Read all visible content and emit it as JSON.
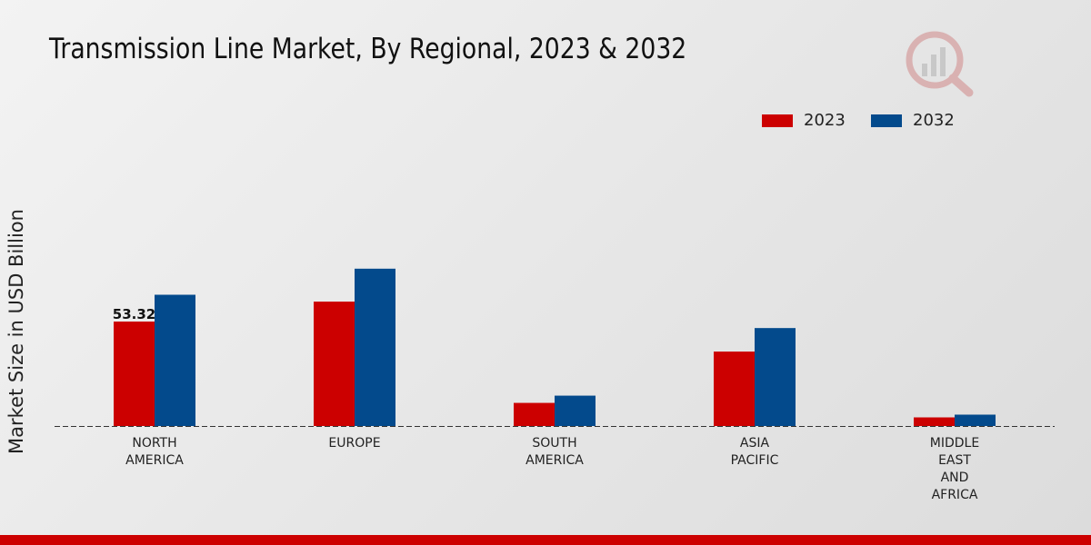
{
  "colors": {
    "series_2023": "#cc0000",
    "series_2032": "#034a8c",
    "footer": "#cc0000"
  },
  "logo": {
    "icon": "magnifier-bar-chart-logo-icon"
  },
  "chart_data": {
    "type": "bar",
    "title": "Transmission Line Market, By Regional, 2023 & 2032",
    "xlabel": "",
    "ylabel": "Market Size in USD Billion",
    "ylim": [
      0,
      120
    ],
    "legend_position": "top-right",
    "grid": false,
    "categories": [
      [
        "NORTH",
        "AMERICA"
      ],
      [
        "EUROPE"
      ],
      [
        "SOUTH",
        "AMERICA"
      ],
      [
        "ASIA",
        "PACIFIC"
      ],
      [
        "MIDDLE",
        "EAST",
        "AND",
        "AFRICA"
      ]
    ],
    "series": [
      {
        "name": "2023",
        "values": [
          53.32,
          63.5,
          11.8,
          38.0,
          4.4
        ]
      },
      {
        "name": "2032",
        "values": [
          67.0,
          80.3,
          15.5,
          50.0,
          5.8
        ]
      }
    ],
    "data_labels": [
      {
        "series": 0,
        "index": 0,
        "text": "53.32"
      }
    ]
  }
}
